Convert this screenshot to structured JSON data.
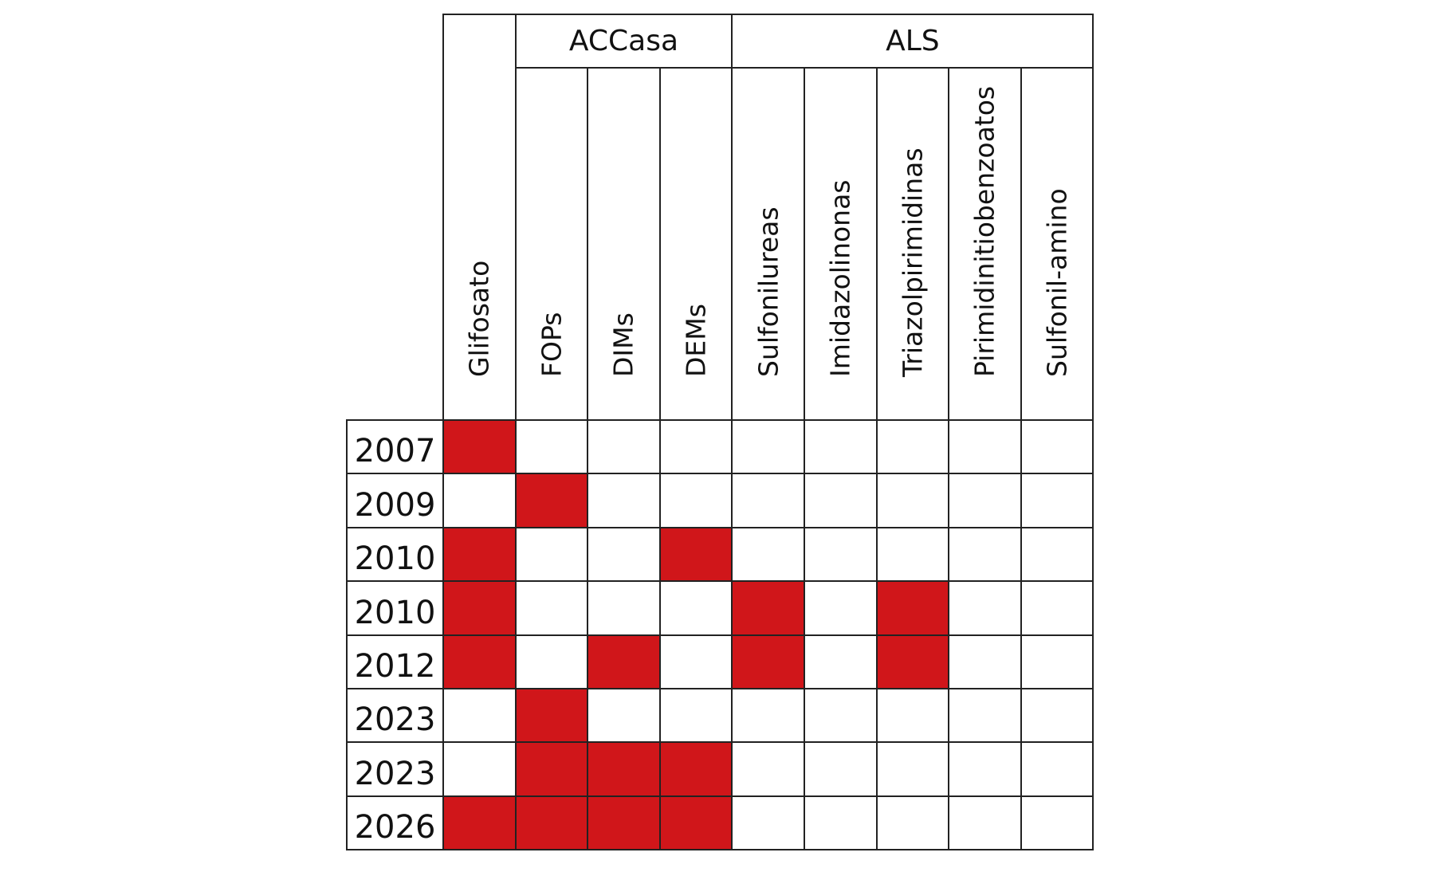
{
  "groups": [
    {
      "label": "ACCasa",
      "start": 1,
      "span": 3
    },
    {
      "label": "ALS",
      "start": 4,
      "span": 5
    }
  ],
  "columns": [
    "Glifosato",
    "FOPs",
    "DIMs",
    "DEMs",
    "Sulfonilureas",
    "Imidazolinonas",
    "Triazolpirimidinas",
    "Pirimidinitiobenzoatos",
    "Sulfonil-amino"
  ],
  "rows": [
    {
      "year": "2007",
      "cells": [
        1,
        0,
        0,
        0,
        0,
        0,
        0,
        0,
        0
      ]
    },
    {
      "year": "2009",
      "cells": [
        0,
        1,
        0,
        0,
        0,
        0,
        0,
        0,
        0
      ]
    },
    {
      "year": "2010",
      "cells": [
        1,
        0,
        0,
        1,
        0,
        0,
        0,
        0,
        0
      ]
    },
    {
      "year": "2010",
      "cells": [
        1,
        0,
        0,
        0,
        1,
        0,
        1,
        0,
        0
      ]
    },
    {
      "year": "2012",
      "cells": [
        1,
        0,
        1,
        0,
        1,
        0,
        1,
        0,
        0
      ]
    },
    {
      "year": "2023",
      "cells": [
        0,
        1,
        0,
        0,
        0,
        0,
        0,
        0,
        0
      ]
    },
    {
      "year": "2023",
      "cells": [
        0,
        1,
        1,
        1,
        0,
        0,
        0,
        0,
        0
      ]
    },
    {
      "year": "2026",
      "cells": [
        1,
        1,
        1,
        1,
        0,
        0,
        0,
        0,
        0
      ]
    }
  ],
  "colors": {
    "marked": "#d0161a",
    "empty": "#ffffff",
    "border": "#222222"
  }
}
